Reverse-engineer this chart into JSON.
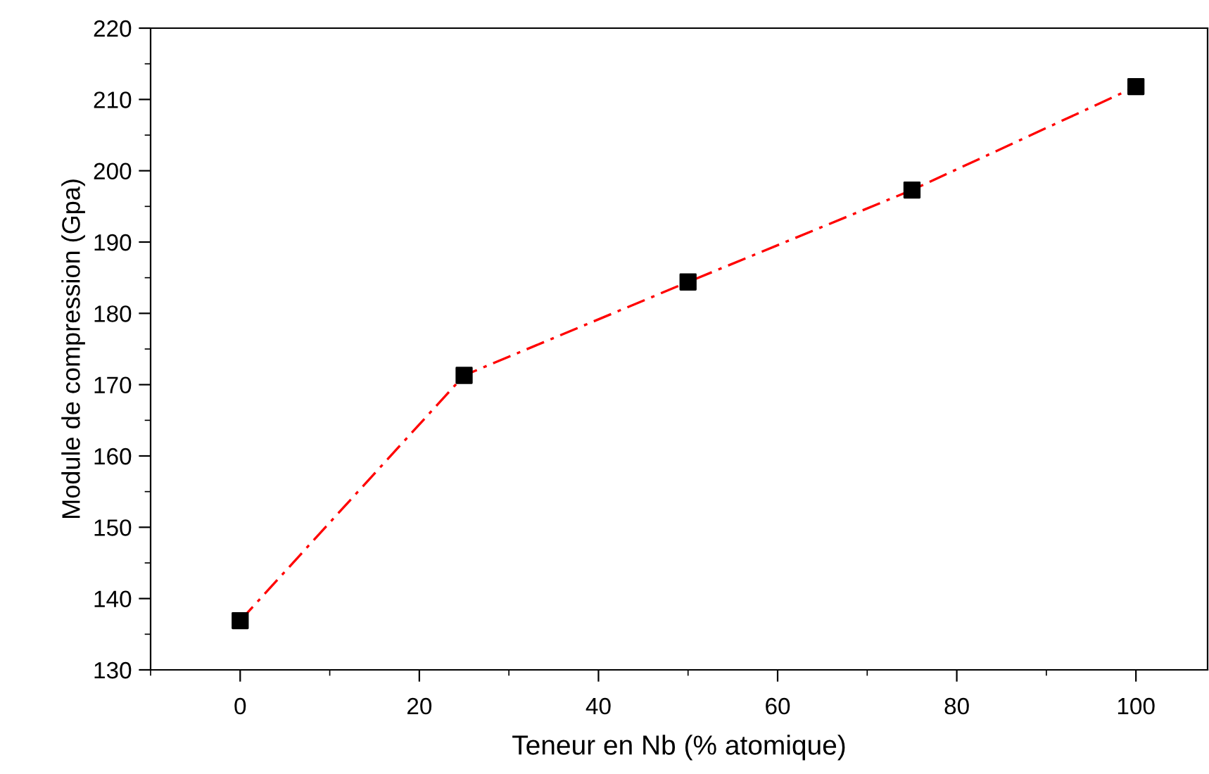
{
  "chart_data": {
    "type": "line",
    "xlabel": "Teneur en Nb (% atomique)",
    "ylabel": "Module de compression (Gpa)",
    "x": [
      0,
      25,
      50,
      75,
      100
    ],
    "series": [
      {
        "color": "#ff0000",
        "values": [
          136.9,
          171.3,
          184.4,
          197.3,
          211.8
        ],
        "marker": "none",
        "line_style": "dashdot"
      },
      {
        "type": "scatter",
        "color": "#000000",
        "values": [
          136.9,
          171.3,
          184.4,
          197.3,
          211.8
        ],
        "marker": "square"
      }
    ],
    "xlim": [
      -10,
      108
    ],
    "ylim": [
      130,
      220
    ],
    "xticks": [
      {
        "value": -10,
        "label": null
      },
      0,
      {
        "value": 10,
        "label": null
      },
      20,
      {
        "value": 30,
        "label": null
      },
      40,
      {
        "value": 50,
        "label": null
      },
      60,
      {
        "value": 70,
        "label": null
      },
      80,
      {
        "value": 90,
        "label": null
      },
      100
    ],
    "yticks": [
      130,
      {
        "value": 135,
        "label": null
      },
      140,
      {
        "value": 145,
        "label": null
      },
      150,
      {
        "value": 155,
        "label": null
      },
      160,
      {
        "value": 165,
        "label": null
      },
      170,
      {
        "value": 175,
        "label": null
      },
      180,
      {
        "value": 185,
        "label": null
      },
      190,
      {
        "value": 195,
        "label": null
      },
      200,
      {
        "value": 205,
        "label": null
      },
      210,
      {
        "value": 215,
        "label": null
      },
      220
    ],
    "grid": false,
    "legend": false
  }
}
